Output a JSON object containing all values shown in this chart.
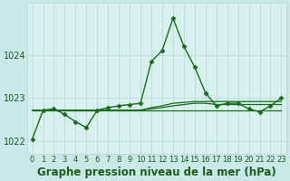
{
  "title": "Graphe pression niveau de la mer (hPa)",
  "background_color": "#cbe8e8",
  "plot_bg_color": "#d8f0f0",
  "grid_color": "#b8d8cc",
  "line_color": "#1a6b1a",
  "marker_color": "#1a6b1a",
  "xlim": [
    -0.5,
    23.5
  ],
  "ylim": [
    1021.7,
    1025.2
  ],
  "yticks": [
    1022,
    1023,
    1024
  ],
  "xticks": [
    0,
    1,
    2,
    3,
    4,
    5,
    6,
    7,
    8,
    9,
    10,
    11,
    12,
    13,
    14,
    15,
    16,
    17,
    18,
    19,
    20,
    21,
    22,
    23
  ],
  "xtick_labels": [
    "0",
    "1",
    "2",
    "3",
    "4",
    "5",
    "6",
    "7",
    "8",
    "9",
    "10",
    "11",
    "12",
    "13",
    "14",
    "15",
    "16",
    "17",
    "18",
    "19",
    "20",
    "21",
    "22",
    "23"
  ],
  "main_series": [
    1022.05,
    1022.72,
    1022.75,
    1022.62,
    1022.45,
    1022.32,
    1022.72,
    1022.78,
    1022.82,
    1022.85,
    1022.88,
    1023.85,
    1024.1,
    1024.85,
    1024.2,
    1023.72,
    1023.12,
    1022.82,
    1022.88,
    1022.88,
    1022.75,
    1022.68,
    1022.82,
    1023.0
  ],
  "flat_series": [
    [
      1022.72,
      1022.72,
      1022.72,
      1022.72,
      1022.72,
      1022.72,
      1022.72,
      1022.72,
      1022.72,
      1022.72,
      1022.72,
      1022.72,
      1022.72,
      1022.72,
      1022.72,
      1022.72,
      1022.72,
      1022.72,
      1022.72,
      1022.72,
      1022.72,
      1022.72,
      1022.72,
      1022.72
    ],
    [
      1022.72,
      1022.72,
      1022.72,
      1022.72,
      1022.72,
      1022.72,
      1022.72,
      1022.72,
      1022.72,
      1022.72,
      1022.72,
      1022.78,
      1022.82,
      1022.88,
      1022.9,
      1022.92,
      1022.92,
      1022.92,
      1022.92,
      1022.92,
      1022.92,
      1022.92,
      1022.92,
      1022.92
    ],
    [
      1022.72,
      1022.72,
      1022.72,
      1022.72,
      1022.72,
      1022.72,
      1022.72,
      1022.72,
      1022.72,
      1022.72,
      1022.72,
      1022.75,
      1022.78,
      1022.82,
      1022.85,
      1022.88,
      1022.88,
      1022.85,
      1022.85,
      1022.85,
      1022.85,
      1022.85,
      1022.85,
      1022.85
    ]
  ],
  "font_color": "#1a5c1a",
  "font_size_title": 8.5,
  "font_size_yticks": 7,
  "font_size_xticks": 6
}
